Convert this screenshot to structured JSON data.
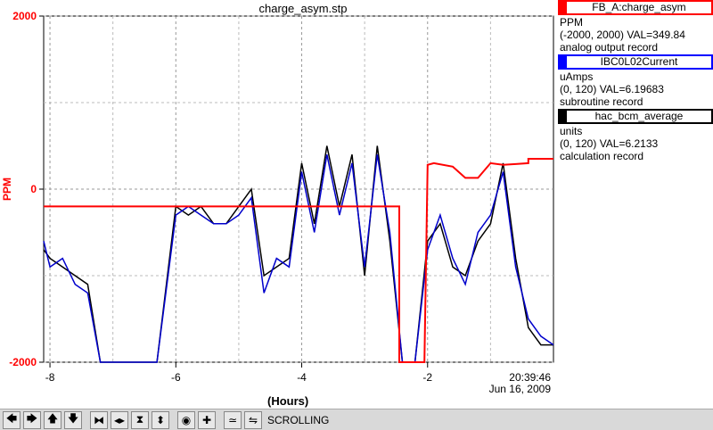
{
  "chart_data": {
    "type": "line",
    "title": "charge_asym.stp",
    "xlabel": "(Hours)",
    "ylabel": "PPM",
    "xlim": [
      -8.1,
      0
    ],
    "ylim": [
      -2000,
      2000
    ],
    "y_ticks": [
      "2000",
      "0",
      "-2000"
    ],
    "x_ticks": [
      "-8",
      "-6",
      "-4",
      "-2"
    ],
    "grid": true,
    "time_label": "20:39:46",
    "date_label": "Jun 16, 2009",
    "series": [
      {
        "name": "FB_A:charge_asym",
        "color": "#ff0000",
        "x": [
          -8.1,
          -2.45,
          -2.45,
          -2.05,
          -2.0,
          -1.9,
          -1.6,
          -1.4,
          -1.2,
          -1.0,
          -0.8,
          -0.6,
          -0.4,
          -0.4,
          0
        ],
        "y": [
          -200,
          -200,
          -2000,
          -2000,
          280,
          300,
          260,
          130,
          130,
          300,
          280,
          290,
          300,
          350,
          350
        ]
      },
      {
        "name": "IBC0L02Current",
        "color": "#0000cc",
        "x": [
          -8.1,
          -8.0,
          -7.8,
          -7.6,
          -7.4,
          -7.2,
          -7.0,
          -6.5,
          -6.3,
          -6.0,
          -5.8,
          -5.6,
          -5.4,
          -5.2,
          -5.0,
          -4.8,
          -4.6,
          -4.4,
          -4.2,
          -4.0,
          -3.8,
          -3.6,
          -3.4,
          -3.2,
          -3.0,
          -2.8,
          -2.6,
          -2.4,
          -2.2,
          -2.0,
          -1.8,
          -1.6,
          -1.4,
          -1.2,
          -1.0,
          -0.8,
          -0.6,
          -0.4,
          -0.2,
          0
        ],
        "y": [
          -600,
          -900,
          -800,
          -1100,
          -1200,
          -2000,
          -2000,
          -2000,
          -2000,
          -300,
          -200,
          -300,
          -400,
          -400,
          -300,
          -100,
          -1200,
          -800,
          -900,
          200,
          -500,
          400,
          -300,
          300,
          -900,
          400,
          -500,
          -2000,
          -2000,
          -700,
          -300,
          -800,
          -1100,
          -500,
          -300,
          200,
          -900,
          -1500,
          -1700,
          -1800
        ]
      },
      {
        "name": "hac_bcm_average",
        "color": "#000000",
        "x": [
          -8.1,
          -8.0,
          -7.8,
          -7.6,
          -7.4,
          -7.2,
          -7.0,
          -6.5,
          -6.3,
          -6.0,
          -5.8,
          -5.6,
          -5.4,
          -5.2,
          -5.0,
          -4.8,
          -4.6,
          -4.4,
          -4.2,
          -4.0,
          -3.8,
          -3.6,
          -3.4,
          -3.2,
          -3.0,
          -2.8,
          -2.6,
          -2.4,
          -2.2,
          -2.0,
          -1.8,
          -1.6,
          -1.4,
          -1.2,
          -1.0,
          -0.8,
          -0.6,
          -0.4,
          -0.2,
          0
        ],
        "y": [
          -700,
          -800,
          -900,
          -1000,
          -1100,
          -2000,
          -2000,
          -2000,
          -2000,
          -200,
          -300,
          -200,
          -400,
          -400,
          -200,
          0,
          -1000,
          -900,
          -800,
          300,
          -400,
          500,
          -200,
          400,
          -1000,
          500,
          -600,
          -2000,
          -2000,
          -600,
          -400,
          -900,
          -1000,
          -600,
          -400,
          300,
          -800,
          -1600,
          -1800,
          -1800
        ]
      }
    ]
  },
  "legend": [
    {
      "name": "FB_A:charge_asym",
      "unit": "PPM",
      "range": "(-2000, 2000) VAL=349.84",
      "record": "analog output record",
      "color": "#ff0000"
    },
    {
      "name": "IBC0L02Current",
      "unit": "uAmps",
      "range": "(0, 120) VAL=6.19683",
      "record": "subroutine record",
      "color": "#0000ff"
    },
    {
      "name": "hac_bcm_average",
      "unit": "units",
      "range": "(0, 120) VAL=6.2133",
      "record": "calculation record",
      "color": "#000000"
    }
  ],
  "toolbar": {
    "buttons": [
      {
        "icon": "arrow-left-icon",
        "glyph": "🡄"
      },
      {
        "icon": "arrow-right-icon",
        "glyph": "🡆"
      },
      {
        "icon": "arrow-up-icon",
        "glyph": "🡅"
      },
      {
        "icon": "arrow-down-icon",
        "glyph": "🡇"
      },
      {
        "icon": "zoom-in-horizontal-icon",
        "glyph": "⧓"
      },
      {
        "icon": "zoom-out-horizontal-icon",
        "glyph": "◂▸"
      },
      {
        "icon": "zoom-in-vertical-icon",
        "glyph": "⧗"
      },
      {
        "icon": "zoom-out-vertical-icon",
        "glyph": "⬍"
      },
      {
        "icon": "record-icon",
        "glyph": "◉"
      },
      {
        "icon": "add-icon",
        "glyph": "✚"
      },
      {
        "icon": "autoscale-icon",
        "glyph": "≃"
      },
      {
        "icon": "fit-icon",
        "glyph": "⇋"
      }
    ],
    "mode_label": "SCROLLING"
  }
}
